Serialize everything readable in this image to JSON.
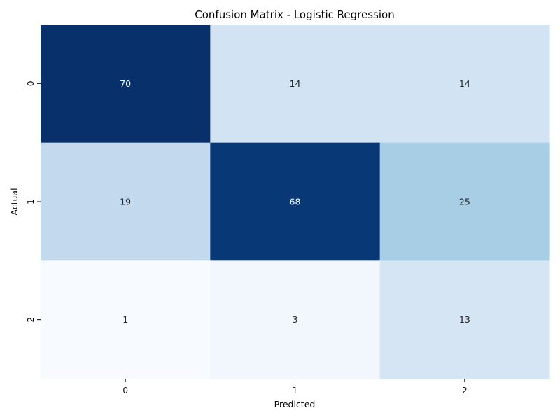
{
  "chart_data": {
    "type": "heatmap",
    "title": "Confusion Matrix - Logistic Regression",
    "xlabel": "Predicted",
    "ylabel": "Actual",
    "x_categories": [
      "0",
      "1",
      "2"
    ],
    "y_categories": [
      "0",
      "1",
      "2"
    ],
    "values": [
      [
        70,
        14,
        14
      ],
      [
        19,
        68,
        25
      ],
      [
        1,
        3,
        13
      ]
    ],
    "colormap": "Blues",
    "colorbar": false,
    "annotations": true
  }
}
